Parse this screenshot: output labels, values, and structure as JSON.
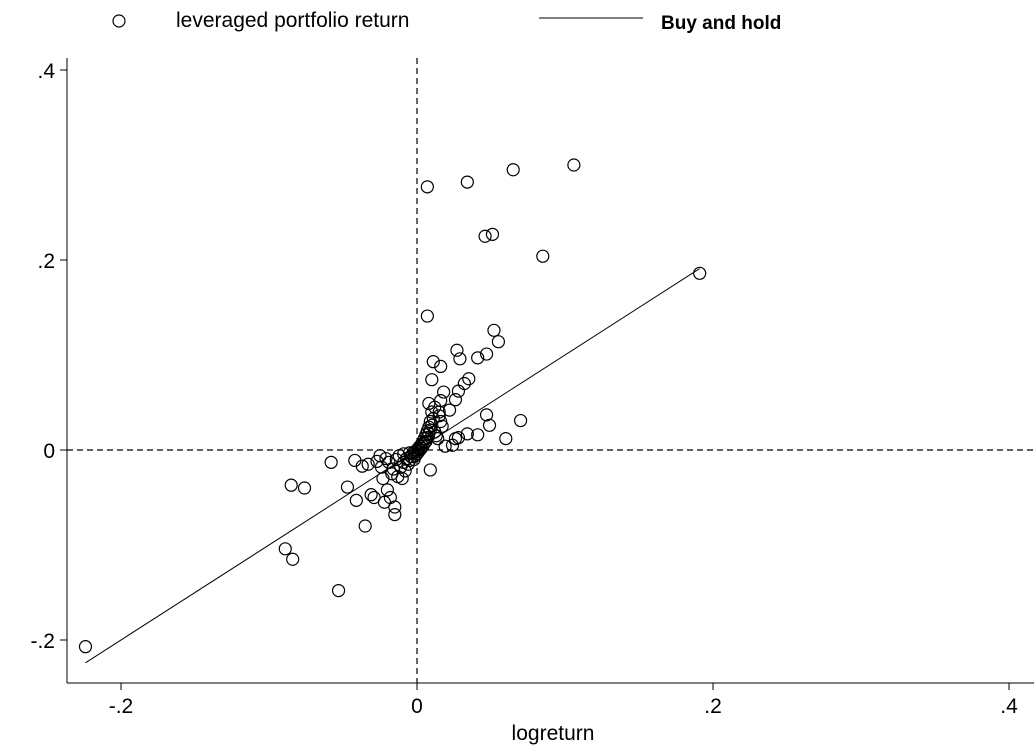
{
  "chart_data": {
    "type": "scatter",
    "xlabel": "logreturn",
    "ylabel": "",
    "xlim": [
      -0.235,
      0.41
    ],
    "ylim": [
      -0.245,
      0.415
    ],
    "x_ticks": [
      -0.2,
      0,
      0.2,
      0.4
    ],
    "x_tick_labels": [
      "-.2",
      "0",
      ".2",
      ".4"
    ],
    "y_ticks": [
      -0.2,
      0,
      0.2,
      0.4
    ],
    "y_tick_labels": [
      "-.2",
      "0",
      ".2",
      ".4"
    ],
    "grid": false,
    "reference_lines": {
      "x": 0,
      "y": 0,
      "style": "dashed"
    },
    "legend": {
      "placement": "top",
      "entries": [
        {
          "label": "leveraged portfolio return",
          "marker": "hollow-circle"
        },
        {
          "label": "Buy and hold",
          "marker": "line"
        }
      ]
    },
    "series": [
      {
        "name": "leveraged portfolio return",
        "kind": "scatter",
        "marker": "hollow-circle",
        "color": "#000000",
        "points": [
          [
            -0.224,
            -0.207
          ],
          [
            -0.089,
            -0.104
          ],
          [
            -0.084,
            -0.115
          ],
          [
            -0.085,
            -0.037
          ],
          [
            -0.076,
            -0.04
          ],
          [
            -0.053,
            -0.148
          ],
          [
            -0.058,
            -0.013
          ],
          [
            -0.047,
            -0.039
          ],
          [
            -0.041,
            -0.053
          ],
          [
            -0.042,
            -0.011
          ],
          [
            -0.037,
            -0.017
          ],
          [
            -0.035,
            -0.08
          ],
          [
            -0.033,
            -0.015
          ],
          [
            -0.031,
            -0.047
          ],
          [
            -0.029,
            -0.05
          ],
          [
            -0.027,
            -0.012
          ],
          [
            -0.025,
            -0.006
          ],
          [
            -0.024,
            -0.018
          ],
          [
            -0.023,
            -0.03
          ],
          [
            -0.022,
            -0.055
          ],
          [
            -0.021,
            -0.009
          ],
          [
            -0.02,
            -0.042
          ],
          [
            -0.019,
            -0.013
          ],
          [
            -0.018,
            -0.05
          ],
          [
            -0.017,
            -0.025
          ],
          [
            -0.016,
            -0.02
          ],
          [
            -0.015,
            -0.06
          ],
          [
            -0.015,
            -0.068
          ],
          [
            -0.014,
            -0.01
          ],
          [
            -0.013,
            -0.028
          ],
          [
            -0.012,
            -0.006
          ],
          [
            -0.011,
            -0.018
          ],
          [
            -0.01,
            -0.03
          ],
          [
            -0.009,
            -0.004
          ],
          [
            -0.009,
            -0.013
          ],
          [
            -0.008,
            -0.022
          ],
          [
            -0.007,
            -0.009
          ],
          [
            -0.006,
            -0.015
          ],
          [
            -0.005,
            -0.003
          ],
          [
            -0.005,
            -0.011
          ],
          [
            -0.004,
            -0.007
          ],
          [
            -0.003,
            -0.004
          ],
          [
            -0.002,
            -0.01
          ],
          [
            -0.002,
            -0.002
          ],
          [
            -0.001,
            -0.006
          ],
          [
            0.0,
            0.0
          ],
          [
            0.0,
            -0.004
          ],
          [
            0.001,
            0.002
          ],
          [
            0.001,
            -0.002
          ],
          [
            0.002,
            0.004
          ],
          [
            0.002,
            0.0
          ],
          [
            0.003,
            0.006
          ],
          [
            0.003,
            0.002
          ],
          [
            0.004,
            0.009
          ],
          [
            0.004,
            0.004
          ],
          [
            0.005,
            0.012
          ],
          [
            0.005,
            0.007
          ],
          [
            0.006,
            0.016
          ],
          [
            0.006,
            0.009
          ],
          [
            0.007,
            0.02
          ],
          [
            0.007,
            0.013
          ],
          [
            0.008,
            0.024
          ],
          [
            0.008,
            0.017
          ],
          [
            0.009,
            0.03
          ],
          [
            0.009,
            0.021
          ],
          [
            0.01,
            0.04
          ],
          [
            0.01,
            0.026
          ],
          [
            0.011,
            0.033
          ],
          [
            0.012,
            0.045
          ],
          [
            0.012,
            0.019
          ],
          [
            0.013,
            0.015
          ],
          [
            0.014,
            0.012
          ],
          [
            0.015,
            0.036
          ],
          [
            0.016,
            0.03
          ],
          [
            0.017,
            0.025
          ],
          [
            0.01,
            0.074
          ],
          [
            0.011,
            0.093
          ],
          [
            0.016,
            0.088
          ],
          [
            0.008,
            0.049
          ],
          [
            0.009,
            -0.021
          ],
          [
            0.007,
            0.277
          ],
          [
            0.034,
            0.282
          ],
          [
            0.065,
            0.295
          ],
          [
            0.106,
            0.3
          ],
          [
            0.046,
            0.225
          ],
          [
            0.051,
            0.227
          ],
          [
            0.085,
            0.204
          ],
          [
            0.191,
            0.186
          ],
          [
            0.007,
            0.141
          ],
          [
            0.052,
            0.126
          ],
          [
            0.055,
            0.114
          ],
          [
            0.027,
            0.105
          ],
          [
            0.029,
            0.096
          ],
          [
            0.041,
            0.097
          ],
          [
            0.047,
            0.101
          ],
          [
            0.035,
            0.075
          ],
          [
            0.032,
            0.07
          ],
          [
            0.028,
            0.062
          ],
          [
            0.026,
            0.053
          ],
          [
            0.018,
            0.061
          ],
          [
            0.016,
            0.052
          ],
          [
            0.015,
            0.04
          ],
          [
            0.022,
            0.042
          ],
          [
            0.047,
            0.037
          ],
          [
            0.049,
            0.026
          ],
          [
            0.07,
            0.031
          ],
          [
            0.06,
            0.012
          ],
          [
            0.041,
            0.016
          ],
          [
            0.034,
            0.017
          ],
          [
            0.026,
            0.012
          ],
          [
            0.024,
            0.005
          ],
          [
            0.028,
            0.013
          ],
          [
            0.019,
            0.004
          ]
        ]
      },
      {
        "name": "Buy and hold",
        "kind": "line",
        "color": "#000000",
        "points": [
          [
            -0.224,
            -0.224
          ],
          [
            0.191,
            0.191
          ]
        ]
      }
    ]
  }
}
